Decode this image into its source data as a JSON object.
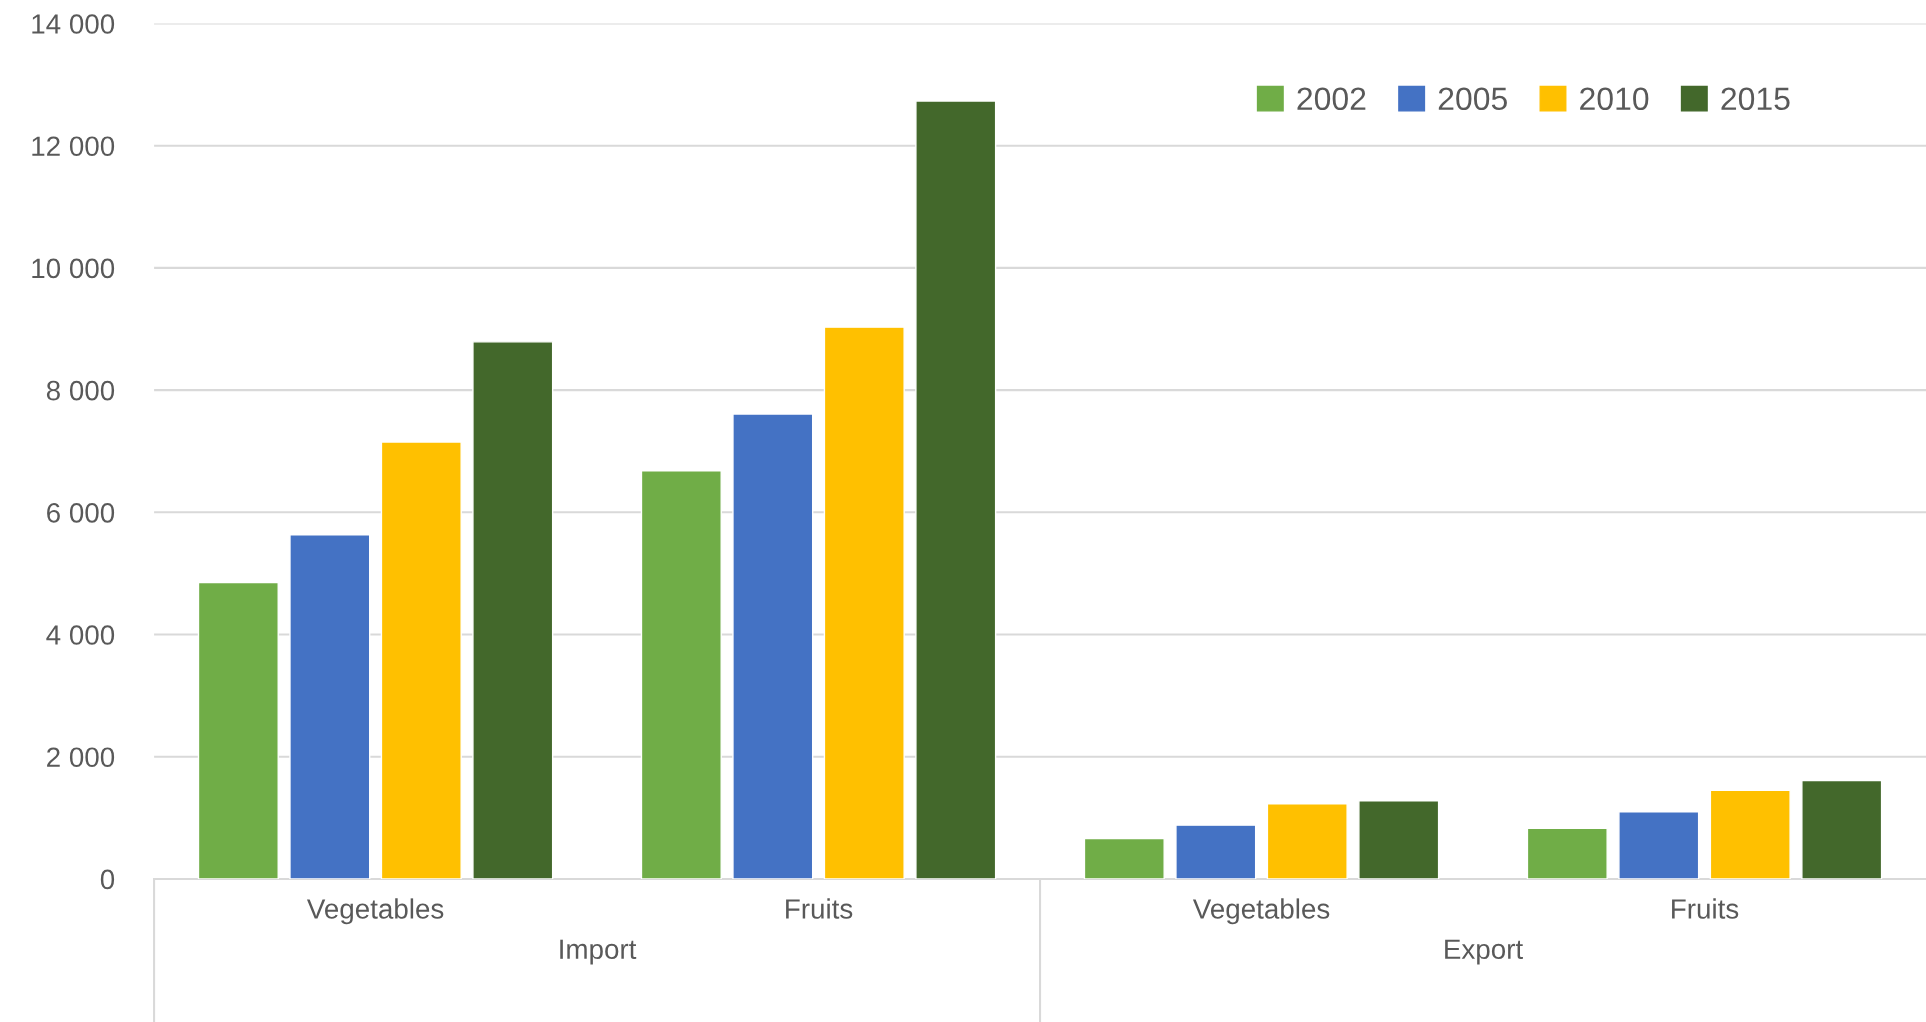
{
  "chart_data": {
    "type": "bar",
    "categories": [
      "Vegetables",
      "Fruits",
      "Vegetables",
      "Fruits"
    ],
    "series": [
      {
        "name": "2002",
        "color": "#70ad47",
        "values": [
          4850,
          6680,
          660,
          830
        ]
      },
      {
        "name": "2005",
        "color": "#4472c4",
        "values": [
          5630,
          7610,
          880,
          1100
        ]
      },
      {
        "name": "2010",
        "color": "#ffc000",
        "values": [
          7150,
          9030,
          1230,
          1450
        ]
      },
      {
        "name": "2015",
        "color": "#43682b",
        "values": [
          8790,
          12730,
          1280,
          1610
        ]
      }
    ],
    "annotations": [
      "Import",
      "Export"
    ],
    "ylim": [
      0,
      14000
    ],
    "yticks": [
      {
        "value": 0,
        "label": "0"
      },
      {
        "value": 2000,
        "label": "2 000"
      },
      {
        "value": 4000,
        "label": "4 000"
      },
      {
        "value": 6000,
        "label": "6 000"
      },
      {
        "value": 8000,
        "label": "8 000"
      },
      {
        "value": 10000,
        "label": "10 000"
      },
      {
        "value": 12000,
        "label": "12 000"
      },
      {
        "value": 14000,
        "label": "14 000"
      }
    ],
    "grid": "y",
    "legend": "top right"
  }
}
